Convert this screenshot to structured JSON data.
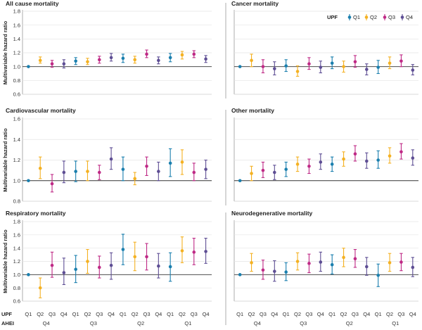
{
  "legend": {
    "title": "UPF",
    "entries": [
      {
        "label": "Q1",
        "color": "#1a7fae"
      },
      {
        "label": "Q2",
        "color": "#f4b122"
      },
      {
        "label": "Q3",
        "color": "#bf2a86"
      },
      {
        "label": "Q4",
        "color": "#5e4e94"
      }
    ]
  },
  "x_axis": {
    "row1_label": "UPF",
    "row2_label": "AHEI",
    "upf_ticks": [
      "Q1",
      "Q2",
      "Q3",
      "Q4",
      "Q1",
      "Q2",
      "Q3",
      "Q4",
      "Q1",
      "Q2",
      "Q3",
      "Q4",
      "Q1",
      "Q2",
      "Q3",
      "Q4"
    ],
    "ahei_groups": [
      "Q4",
      "Q3",
      "Q2",
      "Q1"
    ]
  },
  "chart_data": [
    {
      "type": "scatter",
      "title": "All cause mortality",
      "ylabel": "Multivariable hazard ratio",
      "ylim": [
        0.6,
        1.8
      ],
      "yticks": [
        "0.6",
        "0.8",
        "1.0",
        "1.2",
        "1.4",
        "1.6",
        "1.8"
      ],
      "reference_line": 1.0,
      "points": [
        {
          "ahei": "Q4",
          "upf": "Q1",
          "hr": 1.0,
          "lo": 1.0,
          "hi": 1.0
        },
        {
          "ahei": "Q4",
          "upf": "Q2",
          "hr": 1.09,
          "lo": 1.05,
          "hi": 1.14
        },
        {
          "ahei": "Q4",
          "upf": "Q3",
          "hr": 1.04,
          "lo": 0.99,
          "hi": 1.09
        },
        {
          "ahei": "Q4",
          "upf": "Q4",
          "hr": 1.04,
          "lo": 0.98,
          "hi": 1.1
        },
        {
          "ahei": "Q3",
          "upf": "Q1",
          "hr": 1.08,
          "lo": 1.03,
          "hi": 1.13
        },
        {
          "ahei": "Q3",
          "upf": "Q2",
          "hr": 1.07,
          "lo": 1.03,
          "hi": 1.12
        },
        {
          "ahei": "Q3",
          "upf": "Q3",
          "hr": 1.1,
          "lo": 1.05,
          "hi": 1.15
        },
        {
          "ahei": "Q3",
          "upf": "Q4",
          "hr": 1.13,
          "lo": 1.08,
          "hi": 1.19
        },
        {
          "ahei": "Q2",
          "upf": "Q1",
          "hr": 1.12,
          "lo": 1.06,
          "hi": 1.18
        },
        {
          "ahei": "Q2",
          "upf": "Q2",
          "hr": 1.1,
          "lo": 1.05,
          "hi": 1.15
        },
        {
          "ahei": "Q2",
          "upf": "Q3",
          "hr": 1.18,
          "lo": 1.13,
          "hi": 1.24
        },
        {
          "ahei": "Q2",
          "upf": "Q4",
          "hr": 1.09,
          "lo": 1.04,
          "hi": 1.14
        },
        {
          "ahei": "Q1",
          "upf": "Q1",
          "hr": 1.13,
          "lo": 1.07,
          "hi": 1.19
        },
        {
          "ahei": "Q1",
          "upf": "Q2",
          "hr": 1.17,
          "lo": 1.11,
          "hi": 1.22
        },
        {
          "ahei": "Q1",
          "upf": "Q3",
          "hr": 1.18,
          "lo": 1.13,
          "hi": 1.23
        },
        {
          "ahei": "Q1",
          "upf": "Q4",
          "hr": 1.11,
          "lo": 1.06,
          "hi": 1.16
        }
      ]
    },
    {
      "type": "scatter",
      "title": "Cancer mortality",
      "ylabel": "",
      "ylim": [
        0.6,
        1.8
      ],
      "yticks": [],
      "reference_line": 1.0,
      "points": [
        {
          "ahei": "Q4",
          "upf": "Q1",
          "hr": 1.0,
          "lo": 1.0,
          "hi": 1.0
        },
        {
          "ahei": "Q4",
          "upf": "Q2",
          "hr": 1.09,
          "lo": 1.0,
          "hi": 1.18
        },
        {
          "ahei": "Q4",
          "upf": "Q3",
          "hr": 1.0,
          "lo": 0.91,
          "hi": 1.1
        },
        {
          "ahei": "Q4",
          "upf": "Q4",
          "hr": 0.97,
          "lo": 0.88,
          "hi": 1.07
        },
        {
          "ahei": "Q3",
          "upf": "Q1",
          "hr": 1.01,
          "lo": 0.93,
          "hi": 1.1
        },
        {
          "ahei": "Q3",
          "upf": "Q2",
          "hr": 0.93,
          "lo": 0.86,
          "hi": 1.01
        },
        {
          "ahei": "Q3",
          "upf": "Q3",
          "hr": 1.04,
          "lo": 0.96,
          "hi": 1.13
        },
        {
          "ahei": "Q3",
          "upf": "Q4",
          "hr": 0.99,
          "lo": 0.91,
          "hi": 1.08
        },
        {
          "ahei": "Q2",
          "upf": "Q1",
          "hr": 1.05,
          "lo": 0.97,
          "hi": 1.14
        },
        {
          "ahei": "Q2",
          "upf": "Q2",
          "hr": 1.0,
          "lo": 0.92,
          "hi": 1.08
        },
        {
          "ahei": "Q2",
          "upf": "Q3",
          "hr": 1.07,
          "lo": 0.99,
          "hi": 1.16
        },
        {
          "ahei": "Q2",
          "upf": "Q4",
          "hr": 0.96,
          "lo": 0.88,
          "hi": 1.04
        },
        {
          "ahei": "Q1",
          "upf": "Q1",
          "hr": 0.99,
          "lo": 0.9,
          "hi": 1.09
        },
        {
          "ahei": "Q1",
          "upf": "Q2",
          "hr": 1.05,
          "lo": 0.97,
          "hi": 1.14
        },
        {
          "ahei": "Q1",
          "upf": "Q3",
          "hr": 1.08,
          "lo": 1.0,
          "hi": 1.17
        },
        {
          "ahei": "Q1",
          "upf": "Q4",
          "hr": 0.95,
          "lo": 0.88,
          "hi": 1.03
        }
      ]
    },
    {
      "type": "scatter",
      "title": "Cardiovascular mortality",
      "ylabel": "Multivariable hazard ratio",
      "ylim": [
        0.8,
        1.6
      ],
      "yticks": [
        "0.8",
        "1.0",
        "1.2",
        "1.4",
        "1.6"
      ],
      "reference_line": 1.0,
      "points": [
        {
          "ahei": "Q4",
          "upf": "Q1",
          "hr": 1.0,
          "lo": 1.0,
          "hi": 1.0
        },
        {
          "ahei": "Q4",
          "upf": "Q2",
          "hr": 1.12,
          "lo": 1.02,
          "hi": 1.23
        },
        {
          "ahei": "Q4",
          "upf": "Q3",
          "hr": 0.97,
          "lo": 0.89,
          "hi": 1.06
        },
        {
          "ahei": "Q4",
          "upf": "Q4",
          "hr": 1.08,
          "lo": 0.98,
          "hi": 1.19
        },
        {
          "ahei": "Q3",
          "upf": "Q1",
          "hr": 1.09,
          "lo": 0.99,
          "hi": 1.19
        },
        {
          "ahei": "Q3",
          "upf": "Q2",
          "hr": 1.09,
          "lo": 1.0,
          "hi": 1.19
        },
        {
          "ahei": "Q3",
          "upf": "Q3",
          "hr": 1.08,
          "lo": 1.01,
          "hi": 1.15
        },
        {
          "ahei": "Q3",
          "upf": "Q4",
          "hr": 1.21,
          "lo": 1.11,
          "hi": 1.32
        },
        {
          "ahei": "Q2",
          "upf": "Q1",
          "hr": 1.11,
          "lo": 1.0,
          "hi": 1.23
        },
        {
          "ahei": "Q2",
          "upf": "Q2",
          "hr": 1.02,
          "lo": 0.96,
          "hi": 1.08
        },
        {
          "ahei": "Q2",
          "upf": "Q3",
          "hr": 1.14,
          "lo": 1.05,
          "hi": 1.23
        },
        {
          "ahei": "Q2",
          "upf": "Q4",
          "hr": 1.09,
          "lo": 1.0,
          "hi": 1.18
        },
        {
          "ahei": "Q1",
          "upf": "Q1",
          "hr": 1.17,
          "lo": 1.04,
          "hi": 1.31
        },
        {
          "ahei": "Q1",
          "upf": "Q2",
          "hr": 1.18,
          "lo": 1.06,
          "hi": 1.3
        },
        {
          "ahei": "Q1",
          "upf": "Q3",
          "hr": 1.08,
          "lo": 1.0,
          "hi": 1.17
        },
        {
          "ahei": "Q1",
          "upf": "Q4",
          "hr": 1.11,
          "lo": 1.02,
          "hi": 1.2
        }
      ]
    },
    {
      "type": "scatter",
      "title": "Other mortality",
      "ylabel": "",
      "ylim": [
        0.8,
        1.6
      ],
      "yticks": [],
      "reference_line": 1.0,
      "points": [
        {
          "ahei": "Q4",
          "upf": "Q1",
          "hr": 1.0,
          "lo": 1.0,
          "hi": 1.0
        },
        {
          "ahei": "Q4",
          "upf": "Q2",
          "hr": 1.07,
          "lo": 1.0,
          "hi": 1.14
        },
        {
          "ahei": "Q4",
          "upf": "Q3",
          "hr": 1.1,
          "lo": 1.03,
          "hi": 1.18
        },
        {
          "ahei": "Q4",
          "upf": "Q4",
          "hr": 1.08,
          "lo": 1.01,
          "hi": 1.15
        },
        {
          "ahei": "Q3",
          "upf": "Q1",
          "hr": 1.11,
          "lo": 1.04,
          "hi": 1.18
        },
        {
          "ahei": "Q3",
          "upf": "Q2",
          "hr": 1.16,
          "lo": 1.09,
          "hi": 1.23
        },
        {
          "ahei": "Q3",
          "upf": "Q3",
          "hr": 1.14,
          "lo": 1.07,
          "hi": 1.21
        },
        {
          "ahei": "Q3",
          "upf": "Q4",
          "hr": 1.18,
          "lo": 1.11,
          "hi": 1.26
        },
        {
          "ahei": "Q2",
          "upf": "Q1",
          "hr": 1.16,
          "lo": 1.09,
          "hi": 1.23
        },
        {
          "ahei": "Q2",
          "upf": "Q2",
          "hr": 1.21,
          "lo": 1.14,
          "hi": 1.28
        },
        {
          "ahei": "Q2",
          "upf": "Q3",
          "hr": 1.26,
          "lo": 1.19,
          "hi": 1.34
        },
        {
          "ahei": "Q2",
          "upf": "Q4",
          "hr": 1.19,
          "lo": 1.12,
          "hi": 1.27
        },
        {
          "ahei": "Q1",
          "upf": "Q1",
          "hr": 1.2,
          "lo": 1.12,
          "hi": 1.29
        },
        {
          "ahei": "Q1",
          "upf": "Q2",
          "hr": 1.24,
          "lo": 1.17,
          "hi": 1.32
        },
        {
          "ahei": "Q1",
          "upf": "Q3",
          "hr": 1.28,
          "lo": 1.21,
          "hi": 1.36
        },
        {
          "ahei": "Q1",
          "upf": "Q4",
          "hr": 1.22,
          "lo": 1.15,
          "hi": 1.3
        }
      ]
    },
    {
      "type": "scatter",
      "title": "Respiratory mortality",
      "ylabel": "Multivariable hazard ratio",
      "ylim": [
        0.6,
        1.8
      ],
      "yticks": [
        "0.6",
        "0.8",
        "1.0",
        "1.2",
        "1.4",
        "1.6",
        "1.8"
      ],
      "reference_line": 1.0,
      "points": [
        {
          "ahei": "Q4",
          "upf": "Q1",
          "hr": 1.0,
          "lo": 1.0,
          "hi": 1.0
        },
        {
          "ahei": "Q4",
          "upf": "Q2",
          "hr": 0.8,
          "lo": 0.65,
          "hi": 0.95
        },
        {
          "ahei": "Q4",
          "upf": "Q3",
          "hr": 1.14,
          "lo": 0.96,
          "hi": 1.34
        },
        {
          "ahei": "Q4",
          "upf": "Q4",
          "hr": 1.03,
          "lo": 0.85,
          "hi": 1.25
        },
        {
          "ahei": "Q3",
          "upf": "Q1",
          "hr": 1.08,
          "lo": 0.88,
          "hi": 1.29
        },
        {
          "ahei": "Q3",
          "upf": "Q2",
          "hr": 1.2,
          "lo": 1.02,
          "hi": 1.38
        },
        {
          "ahei": "Q3",
          "upf": "Q3",
          "hr": 1.11,
          "lo": 0.95,
          "hi": 1.28
        },
        {
          "ahei": "Q3",
          "upf": "Q4",
          "hr": 1.14,
          "lo": 0.93,
          "hi": 1.33
        },
        {
          "ahei": "Q2",
          "upf": "Q1",
          "hr": 1.38,
          "lo": 1.15,
          "hi": 1.61
        },
        {
          "ahei": "Q2",
          "upf": "Q2",
          "hr": 1.27,
          "lo": 1.06,
          "hi": 1.49
        },
        {
          "ahei": "Q2",
          "upf": "Q3",
          "hr": 1.27,
          "lo": 1.07,
          "hi": 1.47
        },
        {
          "ahei": "Q2",
          "upf": "Q4",
          "hr": 1.13,
          "lo": 0.95,
          "hi": 1.32
        },
        {
          "ahei": "Q1",
          "upf": "Q1",
          "hr": 1.12,
          "lo": 0.9,
          "hi": 1.33
        },
        {
          "ahei": "Q1",
          "upf": "Q2",
          "hr": 1.36,
          "lo": 1.18,
          "hi": 1.57
        },
        {
          "ahei": "Q1",
          "upf": "Q3",
          "hr": 1.34,
          "lo": 1.15,
          "hi": 1.55
        },
        {
          "ahei": "Q1",
          "upf": "Q4",
          "hr": 1.35,
          "lo": 1.17,
          "hi": 1.55
        }
      ]
    },
    {
      "type": "scatter",
      "title": "Neurodegenerative mortality",
      "ylabel": "",
      "ylim": [
        0.6,
        1.8
      ],
      "yticks": [],
      "reference_line": 1.0,
      "points": [
        {
          "ahei": "Q4",
          "upf": "Q1",
          "hr": 1.0,
          "lo": 1.0,
          "hi": 1.0
        },
        {
          "ahei": "Q4",
          "upf": "Q2",
          "hr": 1.18,
          "lo": 1.05,
          "hi": 1.32
        },
        {
          "ahei": "Q4",
          "upf": "Q3",
          "hr": 1.07,
          "lo": 0.93,
          "hi": 1.22
        },
        {
          "ahei": "Q4",
          "upf": "Q4",
          "hr": 1.05,
          "lo": 0.9,
          "hi": 1.21
        },
        {
          "ahei": "Q3",
          "upf": "Q1",
          "hr": 1.04,
          "lo": 0.91,
          "hi": 1.18
        },
        {
          "ahei": "Q3",
          "upf": "Q2",
          "hr": 1.2,
          "lo": 1.07,
          "hi": 1.33
        },
        {
          "ahei": "Q3",
          "upf": "Q3",
          "hr": 1.17,
          "lo": 1.03,
          "hi": 1.31
        },
        {
          "ahei": "Q3",
          "upf": "Q4",
          "hr": 1.19,
          "lo": 1.05,
          "hi": 1.34
        },
        {
          "ahei": "Q2",
          "upf": "Q1",
          "hr": 1.15,
          "lo": 1.01,
          "hi": 1.3
        },
        {
          "ahei": "Q2",
          "upf": "Q2",
          "hr": 1.26,
          "lo": 1.12,
          "hi": 1.4
        },
        {
          "ahei": "Q2",
          "upf": "Q3",
          "hr": 1.24,
          "lo": 1.11,
          "hi": 1.38
        },
        {
          "ahei": "Q2",
          "upf": "Q4",
          "hr": 1.12,
          "lo": 0.99,
          "hi": 1.26
        },
        {
          "ahei": "Q1",
          "upf": "Q1",
          "hr": 0.99,
          "lo": 0.82,
          "hi": 1.16
        },
        {
          "ahei": "Q1",
          "upf": "Q2",
          "hr": 1.18,
          "lo": 1.05,
          "hi": 1.32
        },
        {
          "ahei": "Q1",
          "upf": "Q3",
          "hr": 1.19,
          "lo": 1.06,
          "hi": 1.32
        },
        {
          "ahei": "Q1",
          "upf": "Q4",
          "hr": 1.11,
          "lo": 0.97,
          "hi": 1.26
        }
      ]
    }
  ]
}
